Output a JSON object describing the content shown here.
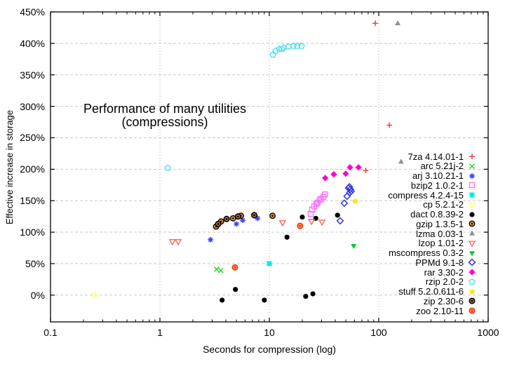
{
  "title_line1": "Performance of many utilities",
  "title_line2": "(compressions)",
  "x_axis_label": "Seconds for compression (log)",
  "y_axis_label": "Effective increase in storage",
  "chart_data": {
    "type": "scatter",
    "title": "Performance of many utilities (compressions)",
    "xlabel": "Seconds for compression (log)",
    "ylabel": "Effective increase in storage",
    "x_scale": "log",
    "xlim": [
      0.1,
      1000
    ],
    "ylim_percent": [
      -42,
      450
    ],
    "x_ticks": [
      0.1,
      1,
      10,
      100,
      1000
    ],
    "x_tick_labels": [
      "0.1",
      "1",
      "10",
      "100",
      "1000"
    ],
    "y_ticks_percent": [
      0,
      50,
      100,
      150,
      200,
      250,
      300,
      350,
      400,
      450
    ],
    "y_tick_labels": [
      "0%",
      "50%",
      "100%",
      "150%",
      "200%",
      "250%",
      "300%",
      "350%",
      "400%",
      "450%"
    ],
    "grid": {
      "horizontal": "dashed gray every 50%",
      "vertical": "dotted gray at decades"
    },
    "legend_position": "inside-right",
    "series": [
      {
        "name": "7za 4.14.01-1",
        "marker": "plus",
        "color": "#ff3333",
        "points": [
          [
            76,
            198
          ],
          [
            93,
            432
          ],
          [
            125,
            270
          ]
        ]
      },
      {
        "name": "arc 5.21j-2",
        "marker": "cross",
        "color": "#2dd42d",
        "points": [
          [
            3.3,
            41
          ],
          [
            3.6,
            39
          ]
        ]
      },
      {
        "name": "arj 3.10.21-1",
        "marker": "asterisk",
        "color": "#3c3cff",
        "points": [
          [
            2.9,
            88
          ],
          [
            5.0,
            113
          ],
          [
            5.7,
            119
          ],
          [
            7.8,
            122
          ]
        ]
      },
      {
        "name": "bzip2 1.0.2-1",
        "marker": "square-open",
        "color": "#ff6eff",
        "points": [
          [
            23.9,
            129
          ],
          [
            24.6,
            136
          ],
          [
            25.7,
            141
          ],
          [
            26.9,
            145
          ],
          [
            27.6,
            147
          ],
          [
            28.9,
            151
          ],
          [
            29.8,
            153
          ],
          [
            31.2,
            156
          ],
          [
            32.2,
            160
          ]
        ]
      },
      {
        "name": "compress 4.2.4-15",
        "marker": "square-filled",
        "color": "#00ecec",
        "points": [
          [
            10,
            50
          ]
        ]
      },
      {
        "name": "cp 5.2.1-2",
        "marker": "circle-open",
        "color": "#ffff55",
        "points": [
          [
            0.25,
            0
          ]
        ]
      },
      {
        "name": "dact 0.8.39-2",
        "marker": "circle-filled",
        "color": "#000000",
        "points": [
          [
            3.7,
            -8
          ],
          [
            4.9,
            9
          ],
          [
            9.0,
            -8
          ],
          [
            14.5,
            92
          ],
          [
            20,
            124
          ],
          [
            21.5,
            -2
          ],
          [
            25,
            2
          ],
          [
            26.6,
            122
          ],
          [
            42,
            127
          ]
        ]
      },
      {
        "name": "gzip 1.3.5-1",
        "marker": "circle-pattern",
        "color": "#1e1005",
        "fill": "#d78d46",
        "points": [
          [
            3.26,
            109
          ],
          [
            3.62,
            117
          ],
          [
            4.66,
            122
          ],
          [
            5.5,
            126
          ],
          [
            10.7,
            126
          ]
        ]
      },
      {
        "name": "lzma 0.03-1",
        "marker": "triangle-filled",
        "color": "#909090",
        "points": [
          [
            149,
            432
          ],
          [
            160,
            212
          ]
        ]
      },
      {
        "name": "lzop 1.01-2",
        "marker": "triangle-down-open",
        "color": "#ff6655",
        "points": [
          [
            1.3,
            85
          ],
          [
            1.47,
            85
          ],
          [
            13.2,
            115
          ],
          [
            24.3,
            117
          ],
          [
            30.3,
            116
          ]
        ]
      },
      {
        "name": "mscompress 0.3-2",
        "marker": "triangle-down-filled",
        "color": "#00c832",
        "points": [
          [
            59,
            78
          ]
        ]
      },
      {
        "name": "PPMd 9.1-8",
        "marker": "diamond-open",
        "color": "#2828e6",
        "points": [
          [
            44.4,
            118
          ],
          [
            48.4,
            146
          ],
          [
            51.3,
            157
          ],
          [
            53,
            170
          ],
          [
            54,
            172
          ],
          [
            55,
            168
          ],
          [
            56,
            165
          ],
          [
            54.5,
            163
          ]
        ]
      },
      {
        "name": "rar 3.30-2",
        "marker": "diamond-filled",
        "color": "#ff00d2",
        "points": [
          [
            32.4,
            186
          ],
          [
            38.8,
            192
          ],
          [
            49.9,
            193
          ],
          [
            54.6,
            203
          ],
          [
            65.3,
            203
          ]
        ]
      },
      {
        "name": "rzip 2.0-2",
        "marker": "pentagon-open",
        "color": "#50dff0",
        "points": [
          [
            1.18,
            202
          ],
          [
            10.8,
            382
          ],
          [
            11.4,
            388
          ],
          [
            12.3,
            391
          ],
          [
            13,
            391
          ],
          [
            13.5,
            393
          ],
          [
            14.9,
            395
          ],
          [
            16.6,
            396
          ],
          [
            18,
            396
          ],
          [
            19.7,
            396
          ]
        ]
      },
      {
        "name": "stuff 5.2.0.611-6",
        "marker": "circle-filled",
        "color": "#ffe800",
        "points": [
          [
            61,
            149
          ]
        ]
      },
      {
        "name": "zip 2.30-6",
        "marker": "circle-pattern",
        "color": "#000000",
        "fill": "#a86a3a",
        "points": [
          [
            3.41,
            113
          ],
          [
            4.07,
            121
          ],
          [
            5.18,
            125
          ],
          [
            7.28,
            127
          ]
        ]
      },
      {
        "name": "zoo 2.10-11",
        "marker": "circle-pattern",
        "color": "#f03c00",
        "fill": "#ff8050",
        "points": [
          [
            4.85,
            44
          ],
          [
            19.1,
            110
          ]
        ]
      }
    ]
  }
}
